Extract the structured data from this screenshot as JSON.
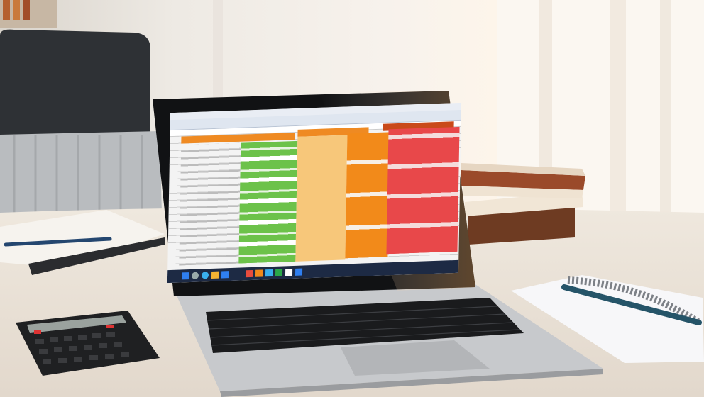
{
  "scene": {
    "description_free": true,
    "colors": {
      "wall": "#f4efe8",
      "desk": "#ece4da",
      "chair": "#2f3236",
      "laptop_body": "#c9cbce",
      "bezel": "#111214",
      "sheet_green": "#6cc24a",
      "sheet_orange": "#f28a1a",
      "sheet_light_orange": "#f7c77a",
      "sheet_red": "#e8484a",
      "header_orange": "#ef8a22",
      "taskbar": "#1d2a44"
    },
    "icons": [
      "spreadsheet-app",
      "calculator",
      "spiral-notebook",
      "pen",
      "books",
      "pencil"
    ]
  }
}
